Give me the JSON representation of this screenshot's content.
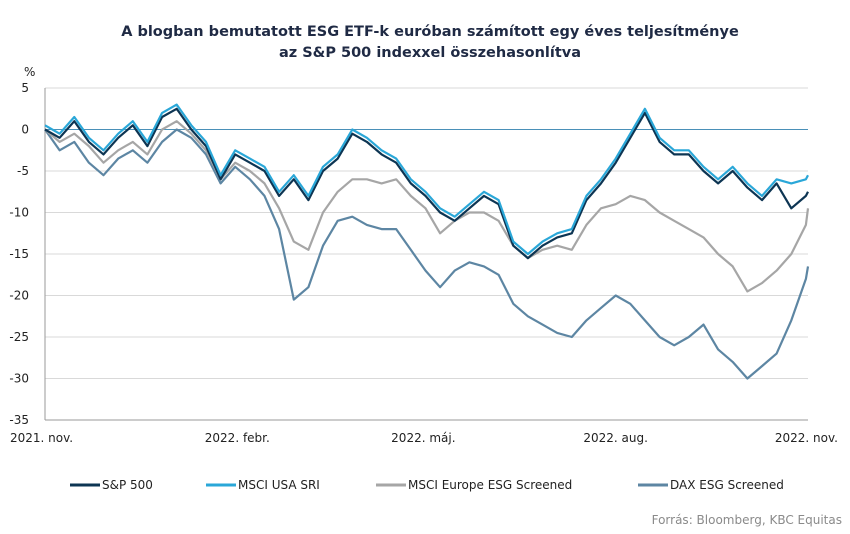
{
  "chart_data": {
    "type": "line",
    "title": "A blogban bemutatott ESG ETF-k euróban számított egy éves teljesítménye",
    "subtitle": "az S&P 500 indexxel összehasonlítva",
    "ylabel": "%",
    "xlabel": "",
    "ylim": [
      -35,
      5
    ],
    "yticks": [
      5,
      0,
      -5,
      -10,
      -15,
      -20,
      -25,
      -30,
      -35
    ],
    "xlim": [
      "2021-11-01",
      "2022-11-01"
    ],
    "xticks": [
      {
        "date": "2021-11-01",
        "label": "2021. nov."
      },
      {
        "date": "2022-02-01",
        "label": "2022. febr."
      },
      {
        "date": "2022-05-01",
        "label": "2022. máj."
      },
      {
        "date": "2022-08-01",
        "label": "2022. aug."
      },
      {
        "date": "2022-11-01",
        "label": "2022. nov."
      }
    ],
    "grid": true,
    "legend_position": "bottom",
    "source": "Forrás: Bloomberg, KBC Equitas",
    "series": [
      {
        "name": "S&P 500",
        "color": "#0d3553",
        "points": [
          [
            "2021-11-01",
            0
          ],
          [
            "2021-11-08",
            -1
          ],
          [
            "2021-11-15",
            1
          ],
          [
            "2021-11-22",
            -1.5
          ],
          [
            "2021-11-29",
            -3
          ],
          [
            "2021-12-06",
            -1
          ],
          [
            "2021-12-13",
            0.5
          ],
          [
            "2021-12-20",
            -2
          ],
          [
            "2021-12-27",
            1.5
          ],
          [
            "2022-01-03",
            2.5
          ],
          [
            "2022-01-10",
            0
          ],
          [
            "2022-01-17",
            -2
          ],
          [
            "2022-01-24",
            -6
          ],
          [
            "2022-01-31",
            -3
          ],
          [
            "2022-02-07",
            -4
          ],
          [
            "2022-02-14",
            -5
          ],
          [
            "2022-02-21",
            -8
          ],
          [
            "2022-02-28",
            -6
          ],
          [
            "2022-03-07",
            -8.5
          ],
          [
            "2022-03-14",
            -5
          ],
          [
            "2022-03-21",
            -3.5
          ],
          [
            "2022-03-28",
            -0.5
          ],
          [
            "2022-04-04",
            -1.5
          ],
          [
            "2022-04-11",
            -3
          ],
          [
            "2022-04-18",
            -4
          ],
          [
            "2022-04-25",
            -6.5
          ],
          [
            "2022-05-02",
            -8
          ],
          [
            "2022-05-09",
            -10
          ],
          [
            "2022-05-16",
            -11
          ],
          [
            "2022-05-23",
            -9.5
          ],
          [
            "2022-05-30",
            -8
          ],
          [
            "2022-06-06",
            -9
          ],
          [
            "2022-06-13",
            -14
          ],
          [
            "2022-06-20",
            -15.5
          ],
          [
            "2022-06-27",
            -14
          ],
          [
            "2022-07-04",
            -13
          ],
          [
            "2022-07-11",
            -12.5
          ],
          [
            "2022-07-18",
            -8.5
          ],
          [
            "2022-07-25",
            -6.5
          ],
          [
            "2022-08-01",
            -4
          ],
          [
            "2022-08-08",
            -1
          ],
          [
            "2022-08-15",
            2
          ],
          [
            "2022-08-22",
            -1.5
          ],
          [
            "2022-08-29",
            -3
          ],
          [
            "2022-09-05",
            -3
          ],
          [
            "2022-09-12",
            -5
          ],
          [
            "2022-09-19",
            -6.5
          ],
          [
            "2022-09-26",
            -5
          ],
          [
            "2022-10-03",
            -7
          ],
          [
            "2022-10-10",
            -8.5
          ],
          [
            "2022-10-17",
            -6.5
          ],
          [
            "2022-10-24",
            -9.5
          ],
          [
            "2022-10-31",
            -8
          ],
          [
            "2022-11-01",
            -7.5
          ]
        ]
      },
      {
        "name": "MSCI USA SRI",
        "color": "#2aa7d8",
        "points": [
          [
            "2021-11-01",
            0.5
          ],
          [
            "2021-11-08",
            -0.5
          ],
          [
            "2021-11-15",
            1.5
          ],
          [
            "2021-11-22",
            -1
          ],
          [
            "2021-11-29",
            -2.5
          ],
          [
            "2021-12-06",
            -0.5
          ],
          [
            "2021-12-13",
            1
          ],
          [
            "2021-12-20",
            -1.5
          ],
          [
            "2021-12-27",
            2
          ],
          [
            "2022-01-03",
            3
          ],
          [
            "2022-01-10",
            0.5
          ],
          [
            "2022-01-17",
            -1.5
          ],
          [
            "2022-01-24",
            -5.5
          ],
          [
            "2022-01-31",
            -2.5
          ],
          [
            "2022-02-07",
            -3.5
          ],
          [
            "2022-02-14",
            -4.5
          ],
          [
            "2022-02-21",
            -7.5
          ],
          [
            "2022-02-28",
            -5.5
          ],
          [
            "2022-03-07",
            -8
          ],
          [
            "2022-03-14",
            -4.5
          ],
          [
            "2022-03-21",
            -3
          ],
          [
            "2022-03-28",
            0
          ],
          [
            "2022-04-04",
            -1
          ],
          [
            "2022-04-11",
            -2.5
          ],
          [
            "2022-04-18",
            -3.5
          ],
          [
            "2022-04-25",
            -6
          ],
          [
            "2022-05-02",
            -7.5
          ],
          [
            "2022-05-09",
            -9.5
          ],
          [
            "2022-05-16",
            -10.5
          ],
          [
            "2022-05-23",
            -9
          ],
          [
            "2022-05-30",
            -7.5
          ],
          [
            "2022-06-06",
            -8.5
          ],
          [
            "2022-06-13",
            -13.5
          ],
          [
            "2022-06-20",
            -15
          ],
          [
            "2022-06-27",
            -13.5
          ],
          [
            "2022-07-04",
            -12.5
          ],
          [
            "2022-07-11",
            -12
          ],
          [
            "2022-07-18",
            -8
          ],
          [
            "2022-07-25",
            -6
          ],
          [
            "2022-08-01",
            -3.5
          ],
          [
            "2022-08-08",
            -0.5
          ],
          [
            "2022-08-15",
            2.5
          ],
          [
            "2022-08-22",
            -1
          ],
          [
            "2022-08-29",
            -2.5
          ],
          [
            "2022-09-05",
            -2.5
          ],
          [
            "2022-09-12",
            -4.5
          ],
          [
            "2022-09-19",
            -6
          ],
          [
            "2022-09-26",
            -4.5
          ],
          [
            "2022-10-03",
            -6.5
          ],
          [
            "2022-10-10",
            -8
          ],
          [
            "2022-10-17",
            -6
          ],
          [
            "2022-10-24",
            -6.5
          ],
          [
            "2022-10-31",
            -6
          ],
          [
            "2022-11-01",
            -5.5
          ]
        ]
      },
      {
        "name": "MSCI Europe ESG Screened",
        "color": "#a6a6a6",
        "points": [
          [
            "2021-11-01",
            0
          ],
          [
            "2021-11-08",
            -1.5
          ],
          [
            "2021-11-15",
            -0.5
          ],
          [
            "2021-11-22",
            -2
          ],
          [
            "2021-11-29",
            -4
          ],
          [
            "2021-12-06",
            -2.5
          ],
          [
            "2021-12-13",
            -1.5
          ],
          [
            "2021-12-20",
            -3
          ],
          [
            "2021-12-27",
            0
          ],
          [
            "2022-01-03",
            1
          ],
          [
            "2022-01-10",
            -0.5
          ],
          [
            "2022-01-17",
            -2.5
          ],
          [
            "2022-01-24",
            -6
          ],
          [
            "2022-01-31",
            -4
          ],
          [
            "2022-02-07",
            -5
          ],
          [
            "2022-02-14",
            -6.5
          ],
          [
            "2022-02-21",
            -9.5
          ],
          [
            "2022-02-28",
            -13.5
          ],
          [
            "2022-03-07",
            -14.5
          ],
          [
            "2022-03-14",
            -10
          ],
          [
            "2022-03-21",
            -7.5
          ],
          [
            "2022-03-28",
            -6
          ],
          [
            "2022-04-04",
            -6
          ],
          [
            "2022-04-11",
            -6.5
          ],
          [
            "2022-04-18",
            -6
          ],
          [
            "2022-04-25",
            -8
          ],
          [
            "2022-05-02",
            -9.5
          ],
          [
            "2022-05-09",
            -12.5
          ],
          [
            "2022-05-16",
            -11
          ],
          [
            "2022-05-23",
            -10
          ],
          [
            "2022-05-30",
            -10
          ],
          [
            "2022-06-06",
            -11
          ],
          [
            "2022-06-13",
            -14
          ],
          [
            "2022-06-20",
            -15.5
          ],
          [
            "2022-06-27",
            -14.5
          ],
          [
            "2022-07-04",
            -14
          ],
          [
            "2022-07-11",
            -14.5
          ],
          [
            "2022-07-18",
            -11.5
          ],
          [
            "2022-07-25",
            -9.5
          ],
          [
            "2022-08-01",
            -9
          ],
          [
            "2022-08-08",
            -8
          ],
          [
            "2022-08-15",
            -8.5
          ],
          [
            "2022-08-22",
            -10
          ],
          [
            "2022-08-29",
            -11
          ],
          [
            "2022-09-05",
            -12
          ],
          [
            "2022-09-12",
            -13
          ],
          [
            "2022-09-19",
            -15
          ],
          [
            "2022-09-26",
            -16.5
          ],
          [
            "2022-10-03",
            -19.5
          ],
          [
            "2022-10-10",
            -18.5
          ],
          [
            "2022-10-17",
            -17
          ],
          [
            "2022-10-24",
            -15
          ],
          [
            "2022-10-31",
            -11.5
          ],
          [
            "2022-11-01",
            -9.5
          ]
        ]
      },
      {
        "name": "DAX ESG Screened",
        "color": "#5d86a3",
        "points": [
          [
            "2021-11-01",
            0
          ],
          [
            "2021-11-08",
            -2.5
          ],
          [
            "2021-11-15",
            -1.5
          ],
          [
            "2021-11-22",
            -4
          ],
          [
            "2021-11-29",
            -5.5
          ],
          [
            "2021-12-06",
            -3.5
          ],
          [
            "2021-12-13",
            -2.5
          ],
          [
            "2021-12-20",
            -4
          ],
          [
            "2021-12-27",
            -1.5
          ],
          [
            "2022-01-03",
            0
          ],
          [
            "2022-01-10",
            -1
          ],
          [
            "2022-01-17",
            -3
          ],
          [
            "2022-01-24",
            -6.5
          ],
          [
            "2022-01-31",
            -4.5
          ],
          [
            "2022-02-07",
            -6
          ],
          [
            "2022-02-14",
            -8
          ],
          [
            "2022-02-21",
            -12
          ],
          [
            "2022-02-28",
            -20.5
          ],
          [
            "2022-03-07",
            -19
          ],
          [
            "2022-03-14",
            -14
          ],
          [
            "2022-03-21",
            -11
          ],
          [
            "2022-03-28",
            -10.5
          ],
          [
            "2022-04-04",
            -11.5
          ],
          [
            "2022-04-11",
            -12
          ],
          [
            "2022-04-18",
            -12
          ],
          [
            "2022-04-25",
            -14.5
          ],
          [
            "2022-05-02",
            -17
          ],
          [
            "2022-05-09",
            -19
          ],
          [
            "2022-05-16",
            -17
          ],
          [
            "2022-05-23",
            -16
          ],
          [
            "2022-05-30",
            -16.5
          ],
          [
            "2022-06-06",
            -17.5
          ],
          [
            "2022-06-13",
            -21
          ],
          [
            "2022-06-20",
            -22.5
          ],
          [
            "2022-06-27",
            -23.5
          ],
          [
            "2022-07-04",
            -24.5
          ],
          [
            "2022-07-11",
            -25
          ],
          [
            "2022-07-18",
            -23
          ],
          [
            "2022-07-25",
            -21.5
          ],
          [
            "2022-08-01",
            -20
          ],
          [
            "2022-08-08",
            -21
          ],
          [
            "2022-08-15",
            -23
          ],
          [
            "2022-08-22",
            -25
          ],
          [
            "2022-08-29",
            -26
          ],
          [
            "2022-09-05",
            -25
          ],
          [
            "2022-09-12",
            -23.5
          ],
          [
            "2022-09-19",
            -26.5
          ],
          [
            "2022-09-26",
            -28
          ],
          [
            "2022-10-03",
            -30
          ],
          [
            "2022-10-10",
            -28.5
          ],
          [
            "2022-10-17",
            -27
          ],
          [
            "2022-10-24",
            -23
          ],
          [
            "2022-10-31",
            -18
          ],
          [
            "2022-11-01",
            -16.5
          ]
        ]
      }
    ]
  }
}
